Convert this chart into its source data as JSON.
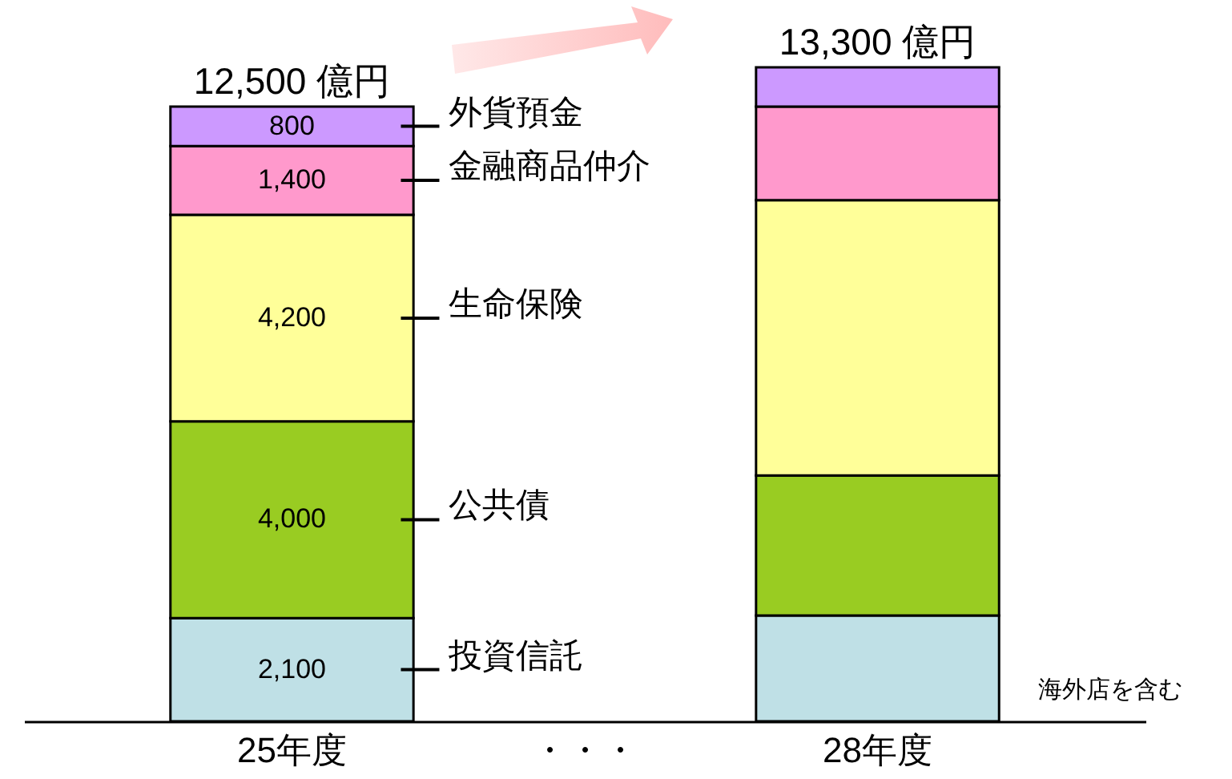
{
  "chart_data": {
    "type": "bar",
    "stacked": true,
    "categories": [
      "25年度",
      "・・・",
      "28年度"
    ],
    "series": [
      {
        "name": "投資信託",
        "color": "#bfe0e6",
        "values": [
          2100,
          null,
          2150
        ],
        "value_labels": [
          "2,100",
          null,
          null
        ]
      },
      {
        "name": "公共債",
        "color": "#99cc22",
        "values": [
          4000,
          null,
          2850
        ],
        "value_labels": [
          "4,000",
          null,
          null
        ]
      },
      {
        "name": "生命保険",
        "color": "#ffff99",
        "values": [
          4200,
          null,
          5600
        ],
        "value_labels": [
          "4,200",
          null,
          null
        ]
      },
      {
        "name": "金融商品仲介",
        "color": "#ff99cc",
        "values": [
          1400,
          null,
          1900
        ],
        "value_labels": [
          "1,400",
          null,
          null
        ]
      },
      {
        "name": "外貨預金",
        "color": "#cc99ff",
        "values": [
          800,
          null,
          800
        ],
        "value_labels": [
          "800",
          null,
          null
        ]
      }
    ],
    "totals": [
      "12,500 億円",
      null,
      "13,300 億円"
    ],
    "annotations": [
      "海外店を含む"
    ],
    "legend": "top left"
  }
}
